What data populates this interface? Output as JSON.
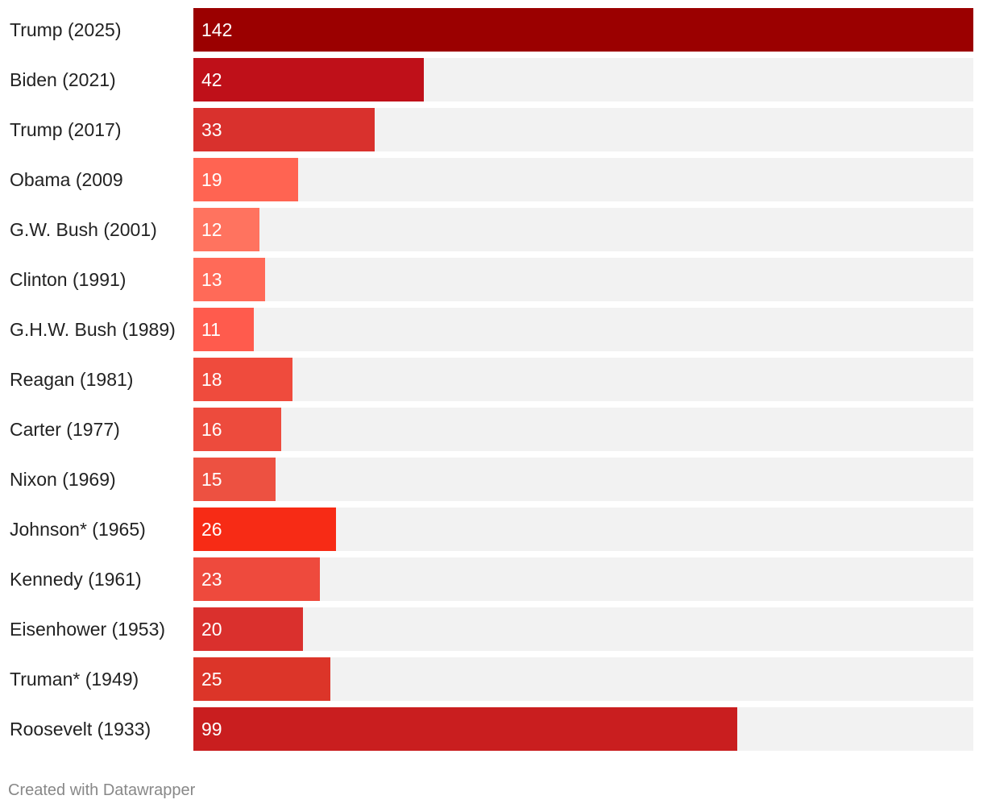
{
  "chart_data": {
    "type": "bar",
    "orientation": "horizontal",
    "title": "",
    "xlabel": "",
    "ylabel": "",
    "xlim": [
      0,
      142
    ],
    "grid": false,
    "legend": "none",
    "categories": [
      "Trump (2025)",
      "Biden (2021)",
      "Trump (2017)",
      "Obama (2009",
      "G.W. Bush (2001)",
      "Clinton (1991)",
      "G.H.W. Bush (1989)",
      "Reagan (1981)",
      "Carter (1977)",
      "Nixon (1969)",
      "Johnson* (1965)",
      "Kennedy (1961)",
      "Eisenhower (1953)",
      "Truman* (1949)",
      "Roosevelt (1933)"
    ],
    "values": [
      142,
      42,
      33,
      19,
      12,
      13,
      11,
      18,
      16,
      15,
      26,
      23,
      20,
      25,
      99
    ],
    "colors": [
      "#9b0000",
      "#bf1019",
      "#d9312d",
      "#ff6452",
      "#ff735f",
      "#ff6a58",
      "#ff5b4d",
      "#ef4b3d",
      "#ed4b3d",
      "#ed5141",
      "#f72b15",
      "#ee4a3d",
      "#da302d",
      "#dc3529",
      "#c91e1f"
    ],
    "track_color": "#f2f2f2"
  },
  "footer": {
    "credit": "Created with Datawrapper"
  }
}
